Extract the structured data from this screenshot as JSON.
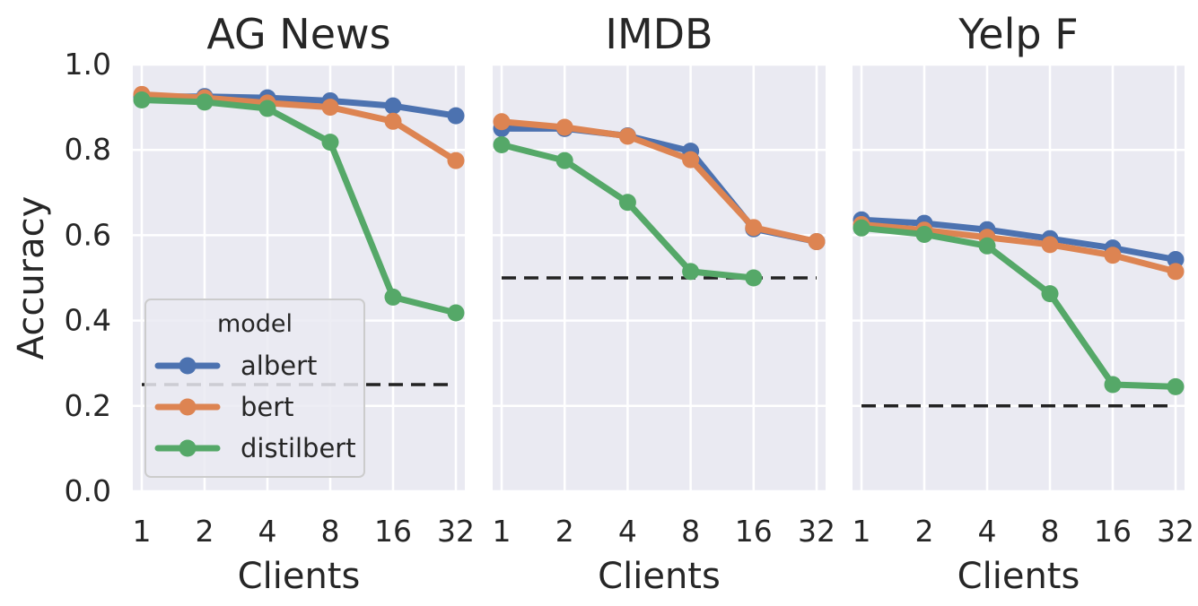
{
  "chart_data": [
    {
      "type": "line",
      "title": "AG News",
      "xlabel": "Clients",
      "ylabel": "Accuracy",
      "categories": [
        "1",
        "2",
        "4",
        "8",
        "16",
        "32"
      ],
      "ylim": [
        0,
        1
      ],
      "yticks": [
        "0.0",
        "0.2",
        "0.4",
        "0.6",
        "0.8",
        "1.0"
      ],
      "grid": true,
      "baseline": 0.25,
      "series": [
        {
          "name": "albert",
          "values": [
            0.925,
            0.925,
            0.922,
            0.915,
            0.903,
            0.88
          ]
        },
        {
          "name": "bert",
          "values": [
            0.93,
            0.922,
            0.91,
            0.9,
            0.867,
            0.775
          ]
        },
        {
          "name": "distilbert",
          "values": [
            0.917,
            0.912,
            0.897,
            0.818,
            0.455,
            0.418
          ]
        }
      ]
    },
    {
      "type": "line",
      "title": "IMDB",
      "xlabel": "Clients",
      "ylabel": "",
      "categories": [
        "1",
        "2",
        "4",
        "8",
        "16",
        "32"
      ],
      "ylim": [
        0,
        1
      ],
      "grid": true,
      "baseline": 0.5,
      "series": [
        {
          "name": "albert",
          "values": [
            0.85,
            0.85,
            0.833,
            0.797,
            0.615,
            0.585
          ]
        },
        {
          "name": "bert",
          "values": [
            0.866,
            0.853,
            0.832,
            0.777,
            0.618,
            0.585
          ]
        },
        {
          "name": "distilbert",
          "values": [
            0.812,
            0.775,
            0.677,
            0.515,
            0.5,
            null
          ]
        }
      ]
    },
    {
      "type": "line",
      "title": "Yelp F",
      "xlabel": "Clients",
      "ylabel": "",
      "categories": [
        "1",
        "2",
        "4",
        "8",
        "16",
        "32"
      ],
      "ylim": [
        0,
        1
      ],
      "grid": true,
      "baseline": 0.2,
      "series": [
        {
          "name": "albert",
          "values": [
            0.636,
            0.628,
            0.613,
            0.592,
            0.57,
            0.543
          ]
        },
        {
          "name": "bert",
          "values": [
            0.625,
            0.612,
            0.595,
            0.578,
            0.553,
            0.515
          ]
        },
        {
          "name": "distilbert",
          "values": [
            0.617,
            0.602,
            0.575,
            0.463,
            0.25,
            0.245
          ]
        }
      ]
    }
  ],
  "legend": {
    "title": "model",
    "placement": "lower-left",
    "entries": [
      "albert",
      "bert",
      "distilbert"
    ]
  },
  "colors": {
    "albert": "#4c72b0",
    "bert": "#dd8452",
    "distilbert": "#55a868",
    "background": "#eaeaf2",
    "grid": "#ffffff",
    "baseline": "#222222"
  }
}
